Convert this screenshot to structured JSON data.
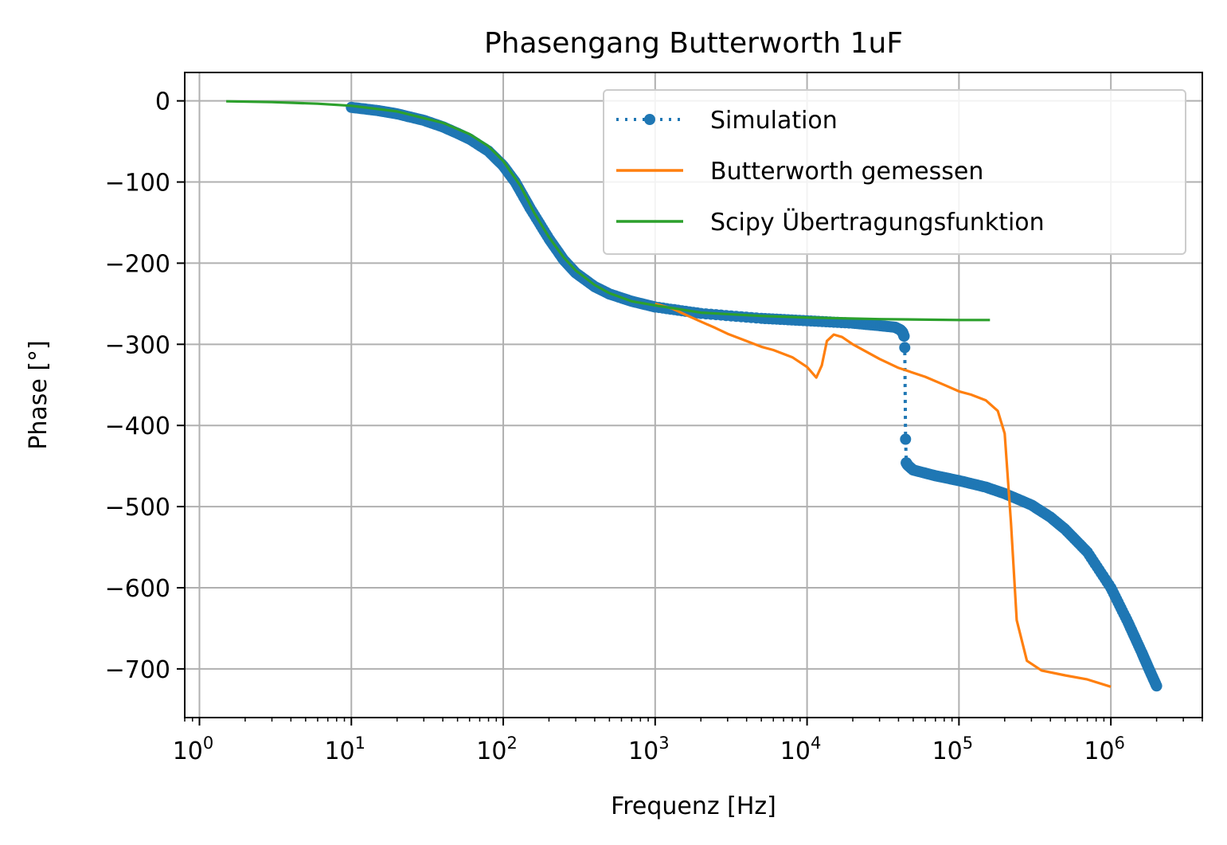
{
  "chart_data": {
    "type": "line",
    "title": "Phasengang Butterworth 1uF",
    "xlabel": "Frequenz [Hz]",
    "ylabel": "Phase [°]",
    "xscale": "log",
    "xlim": [
      0.8,
      4000000
    ],
    "ylim": [
      -760,
      35
    ],
    "xticks": [
      1,
      10,
      100,
      1000,
      10000,
      100000,
      1000000
    ],
    "xtick_labels": [
      {
        "base": "10",
        "exp": "0"
      },
      {
        "base": "10",
        "exp": "1"
      },
      {
        "base": "10",
        "exp": "2"
      },
      {
        "base": "10",
        "exp": "3"
      },
      {
        "base": "10",
        "exp": "4"
      },
      {
        "base": "10",
        "exp": "5"
      },
      {
        "base": "10",
        "exp": "6"
      }
    ],
    "yticks": [
      0,
      -100,
      -200,
      -300,
      -400,
      -500,
      -600,
      -700
    ],
    "ytick_labels": [
      "0",
      "−100",
      "−200",
      "−300",
      "−400",
      "−500",
      "−600",
      "−700"
    ],
    "grid": true,
    "legend_position": "top-right",
    "series": [
      {
        "name": "Simulation",
        "color": "#1f77b4",
        "style": "dotted-markers",
        "points": [
          [
            10,
            -8
          ],
          [
            15,
            -12
          ],
          [
            20,
            -16
          ],
          [
            30,
            -24
          ],
          [
            40,
            -32
          ],
          [
            50,
            -40
          ],
          [
            60,
            -47
          ],
          [
            80,
            -62
          ],
          [
            100,
            -80
          ],
          [
            120,
            -100
          ],
          [
            150,
            -132
          ],
          [
            200,
            -170
          ],
          [
            250,
            -196
          ],
          [
            300,
            -212
          ],
          [
            400,
            -229
          ],
          [
            500,
            -238
          ],
          [
            700,
            -247
          ],
          [
            1000,
            -254
          ],
          [
            2000,
            -262
          ],
          [
            5000,
            -268
          ],
          [
            10000,
            -271
          ],
          [
            20000,
            -274
          ],
          [
            30000,
            -277
          ],
          [
            38000,
            -279
          ],
          [
            41000,
            -282
          ],
          [
            42500,
            -285
          ],
          [
            43500,
            -290
          ],
          [
            44000,
            -304
          ],
          [
            44500,
            -417
          ],
          [
            45000,
            -446
          ],
          [
            46000,
            -449
          ],
          [
            50000,
            -455
          ],
          [
            70000,
            -462
          ],
          [
            100000,
            -468
          ],
          [
            150000,
            -476
          ],
          [
            200000,
            -484
          ],
          [
            300000,
            -498
          ],
          [
            400000,
            -513
          ],
          [
            500000,
            -528
          ],
          [
            700000,
            -556
          ],
          [
            1000000,
            -600
          ],
          [
            1300000,
            -643
          ],
          [
            1600000,
            -680
          ],
          [
            1800000,
            -702
          ],
          [
            2000000,
            -721
          ]
        ]
      },
      {
        "name": "Butterworth gemessen",
        "color": "#ff7f0e",
        "style": "line",
        "points": [
          [
            1000,
            -250
          ],
          [
            1300,
            -256
          ],
          [
            1600,
            -264
          ],
          [
            2000,
            -272
          ],
          [
            2500,
            -280
          ],
          [
            3000,
            -287
          ],
          [
            4000,
            -296
          ],
          [
            5000,
            -303
          ],
          [
            6000,
            -307
          ],
          [
            8000,
            -316
          ],
          [
            10000,
            -328
          ],
          [
            11500,
            -341
          ],
          [
            12500,
            -326
          ],
          [
            13500,
            -296
          ],
          [
            15000,
            -288
          ],
          [
            17000,
            -291
          ],
          [
            20000,
            -300
          ],
          [
            30000,
            -318
          ],
          [
            40000,
            -329
          ],
          [
            60000,
            -340
          ],
          [
            80000,
            -350
          ],
          [
            100000,
            -358
          ],
          [
            120000,
            -362
          ],
          [
            150000,
            -369
          ],
          [
            180000,
            -382
          ],
          [
            200000,
            -410
          ],
          [
            220000,
            -520
          ],
          [
            240000,
            -640
          ],
          [
            280000,
            -690
          ],
          [
            350000,
            -702
          ],
          [
            500000,
            -708
          ],
          [
            700000,
            -713
          ],
          [
            1000000,
            -722
          ]
        ]
      },
      {
        "name": "Scipy Übertragungsfunktion",
        "color": "#2ca02c",
        "style": "line",
        "points": [
          [
            1.5,
            -0.5
          ],
          [
            3,
            -1.5
          ],
          [
            6,
            -3.5
          ],
          [
            10,
            -6
          ],
          [
            20,
            -13
          ],
          [
            40,
            -27
          ],
          [
            60,
            -41
          ],
          [
            80,
            -56
          ],
          [
            100,
            -74
          ],
          [
            130,
            -105
          ],
          [
            160,
            -138
          ],
          [
            200,
            -168
          ],
          [
            250,
            -193
          ],
          [
            300,
            -209
          ],
          [
            400,
            -227
          ],
          [
            500,
            -237
          ],
          [
            700,
            -247
          ],
          [
            1000,
            -252
          ],
          [
            2000,
            -261
          ],
          [
            5000,
            -265
          ],
          [
            10000,
            -267
          ],
          [
            30000,
            -269
          ],
          [
            100000,
            -270
          ],
          [
            160000,
            -270
          ]
        ]
      }
    ]
  }
}
